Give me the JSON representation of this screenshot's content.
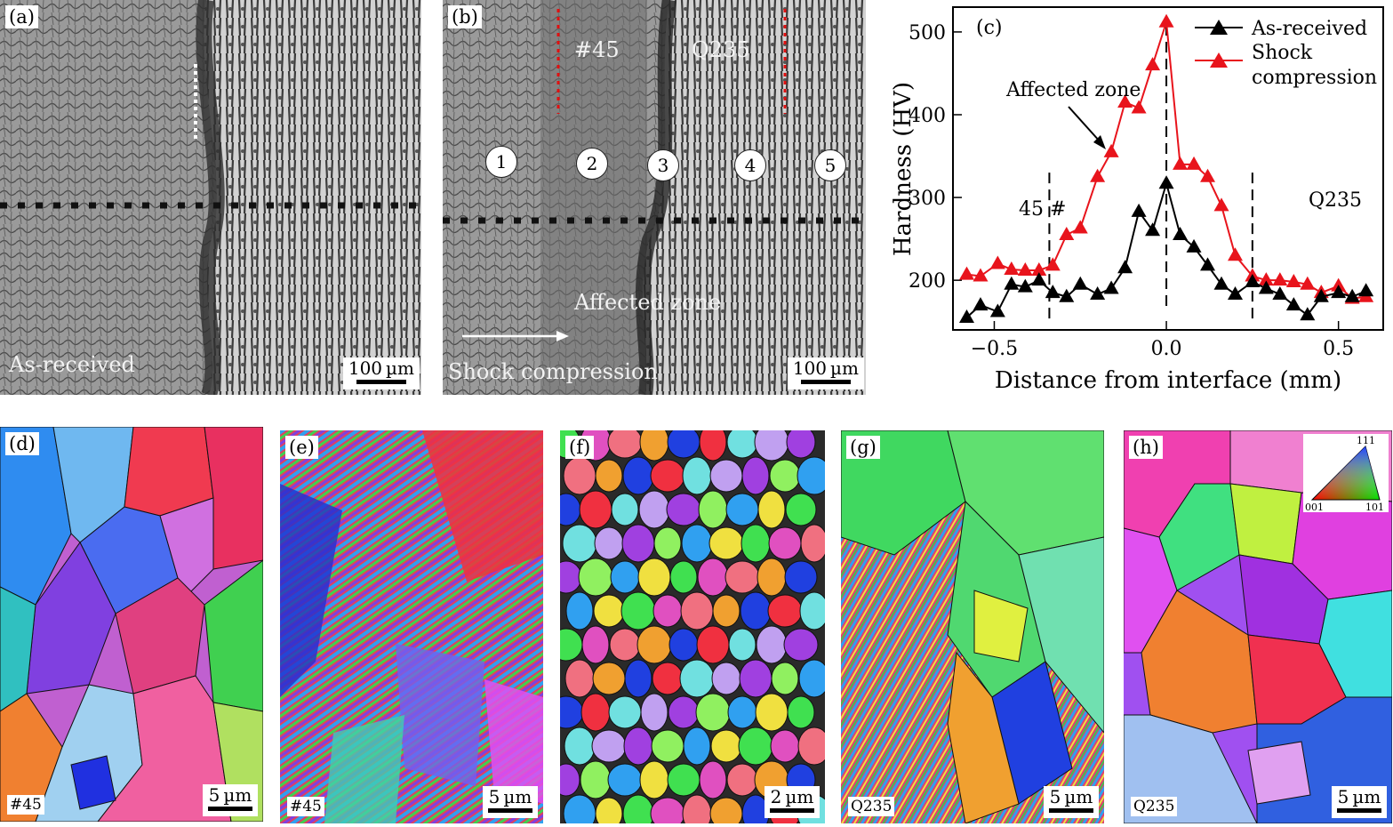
{
  "panels": {
    "a": {
      "label": "(a)",
      "caption": "As-received",
      "scale": "100 µm"
    },
    "b": {
      "label": "(b)",
      "left_material": "#45",
      "right_material": "Q235",
      "zones": [
        "1",
        "2",
        "3",
        "4",
        "5"
      ],
      "affected": "Affected zone",
      "caption": "Shock compression",
      "scale": "100 µm"
    },
    "d": {
      "label": "(d)",
      "tag": "#45",
      "scale": "5 µm"
    },
    "e": {
      "label": "(e)",
      "tag": "#45",
      "scale": "5 µm"
    },
    "f": {
      "label": "(f)",
      "tag": "",
      "scale": "2 µm"
    },
    "g": {
      "label": "(g)",
      "tag": "Q235",
      "scale": "5 µm"
    },
    "h": {
      "label": "(h)",
      "tag": "Q235",
      "scale": "5 µm",
      "ipf_labels": [
        "111",
        "001",
        "101"
      ]
    }
  },
  "chart_data": {
    "type": "line",
    "panel_label": "(c)",
    "title": "",
    "xlabel": "Distance from interface (mm)",
    "ylabel": "Hardness (HV)",
    "xlim": [
      -0.62,
      0.63
    ],
    "ylim": [
      140,
      530
    ],
    "xticks": [
      -0.5,
      0.0,
      0.5
    ],
    "xtick_labels": [
      "−0.5",
      "0.0",
      "0.5"
    ],
    "yticks": [
      200,
      300,
      400,
      500
    ],
    "ytick_labels": [
      "200",
      "300",
      "400",
      "500"
    ],
    "grid": false,
    "legend_position": "top-right",
    "vlines": [
      -0.34,
      0.0,
      0.25
    ],
    "annotations": {
      "affected": "Affected zone",
      "left": "45 #",
      "right": "Q235"
    },
    "series": [
      {
        "name": "As-received",
        "color": "#000000",
        "x": [
          -0.58,
          -0.54,
          -0.49,
          -0.45,
          -0.41,
          -0.37,
          -0.33,
          -0.29,
          -0.25,
          -0.2,
          -0.16,
          -0.12,
          -0.08,
          -0.04,
          0.0,
          0.04,
          0.08,
          0.12,
          0.16,
          0.2,
          0.25,
          0.29,
          0.33,
          0.37,
          0.41,
          0.45,
          0.5,
          0.54,
          0.58
        ],
        "y": [
          155,
          170,
          162,
          195,
          192,
          200,
          185,
          180,
          195,
          183,
          190,
          215,
          283,
          260,
          317,
          255,
          240,
          218,
          195,
          183,
          198,
          190,
          183,
          170,
          158,
          180,
          185,
          180,
          187
        ]
      },
      {
        "name": "Shock compression",
        "color": "#e8141c",
        "x": [
          -0.58,
          -0.54,
          -0.49,
          -0.45,
          -0.41,
          -0.37,
          -0.33,
          -0.29,
          -0.25,
          -0.2,
          -0.16,
          -0.12,
          -0.08,
          -0.04,
          0.0,
          0.04,
          0.08,
          0.12,
          0.16,
          0.2,
          0.25,
          0.29,
          0.33,
          0.37,
          0.41,
          0.45,
          0.5,
          0.54,
          0.58
        ],
        "y": [
          207,
          205,
          220,
          213,
          212,
          212,
          218,
          255,
          263,
          325,
          355,
          415,
          408,
          460,
          512,
          340,
          340,
          325,
          290,
          230,
          205,
          200,
          200,
          198,
          195,
          185,
          193,
          178,
          180
        ]
      }
    ],
    "legend_labels": [
      "As-received",
      "Shock",
      "compression"
    ]
  }
}
